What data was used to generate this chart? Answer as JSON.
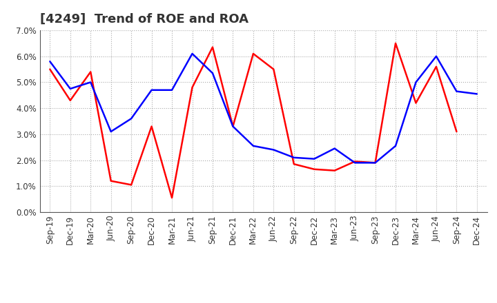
{
  "title": "[4249]  Trend of ROE and ROA",
  "labels": [
    "Sep-19",
    "Dec-19",
    "Mar-20",
    "Jun-20",
    "Sep-20",
    "Dec-20",
    "Mar-21",
    "Jun-21",
    "Sep-21",
    "Dec-21",
    "Mar-22",
    "Jun-22",
    "Sep-22",
    "Dec-22",
    "Mar-23",
    "Jun-23",
    "Sep-23",
    "Dec-23",
    "Mar-24",
    "Jun-24",
    "Sep-24",
    "Dec-24"
  ],
  "ROE": [
    5.5,
    4.3,
    5.4,
    1.2,
    1.05,
    3.3,
    0.55,
    4.8,
    6.35,
    3.3,
    6.1,
    5.5,
    1.85,
    1.65,
    1.6,
    1.95,
    1.9,
    6.5,
    4.2,
    5.6,
    3.1,
    null
  ],
  "ROA": [
    5.8,
    4.75,
    5.0,
    3.1,
    3.6,
    4.7,
    4.7,
    6.1,
    5.35,
    3.3,
    2.55,
    2.4,
    2.1,
    2.05,
    2.45,
    1.9,
    1.9,
    2.55,
    5.0,
    6.0,
    4.65,
    4.55
  ],
  "roe_color": "#FF0000",
  "roa_color": "#0000FF",
  "ylim": [
    0.0,
    7.0
  ],
  "yticks": [
    0.0,
    1.0,
    2.0,
    3.0,
    4.0,
    5.0,
    6.0,
    7.0
  ],
  "background_color": "#ffffff",
  "grid_color": "#aaaaaa",
  "title_fontsize": 13,
  "axis_fontsize": 8.5,
  "legend_fontsize": 10
}
